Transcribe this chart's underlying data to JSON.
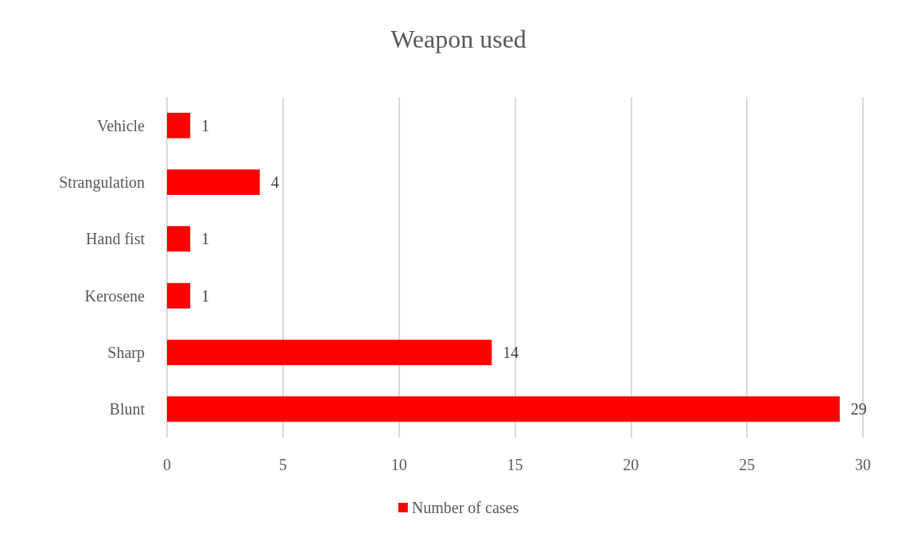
{
  "chart_data": {
    "type": "bar",
    "orientation": "horizontal",
    "title": "Weapon used",
    "categories": [
      "Vehicle",
      "Strangulation",
      "Hand fist",
      "Kerosene",
      "Sharp",
      "Blunt"
    ],
    "series": [
      {
        "name": "Number of cases",
        "color": "#ff0000",
        "values": [
          1,
          4,
          1,
          1,
          14,
          29
        ]
      }
    ],
    "xlim": [
      0,
      30
    ],
    "xticks": [
      0,
      5,
      10,
      15,
      20,
      25,
      30
    ],
    "grid": "x",
    "legend": "bottom",
    "data_labels": true
  }
}
